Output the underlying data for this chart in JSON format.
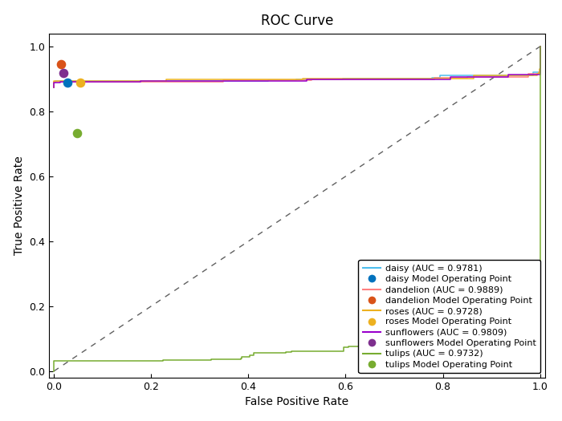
{
  "title": "ROC Curve",
  "xlabel": "False Positive Rate",
  "ylabel": "True Positive Rate",
  "xlim": [
    -0.02,
    1.02
  ],
  "ylim": [
    -0.02,
    1.05
  ],
  "curves": [
    {
      "name": "daisy",
      "auc": 0.9781,
      "line_color": "#4DBEEE",
      "dot_color": "#0072BD",
      "op_fpr": 0.028,
      "op_tpr": 0.888,
      "start_tpr": 0.873,
      "seed": 10
    },
    {
      "name": "dandelion",
      "auc": 0.9889,
      "line_color": "#FF7F7F",
      "dot_color": "#D95319",
      "op_fpr": 0.015,
      "op_tpr": 0.945,
      "start_tpr": 0.873,
      "seed": 20
    },
    {
      "name": "roses",
      "auc": 0.9728,
      "line_color": "#EDB120",
      "dot_color": "#EDB120",
      "op_fpr": 0.055,
      "op_tpr": 0.89,
      "start_tpr": 0.873,
      "seed": 30
    },
    {
      "name": "sunflowers",
      "auc": 0.9809,
      "line_color": "#9900CC",
      "dot_color": "#7E2F8E",
      "op_fpr": 0.02,
      "op_tpr": 0.918,
      "start_tpr": 0.873,
      "seed": 40
    },
    {
      "name": "tulips",
      "auc": 0.9732,
      "line_color": "#77AC30",
      "dot_color": "#77AC30",
      "op_fpr": 0.048,
      "op_tpr": 0.732,
      "start_tpr": 0.0,
      "seed": 50
    }
  ],
  "diag_color": "#606060",
  "legend_fontsize": 8,
  "title_fontsize": 12,
  "figwidth": 7.0,
  "figheight": 5.25,
  "dpi": 100
}
